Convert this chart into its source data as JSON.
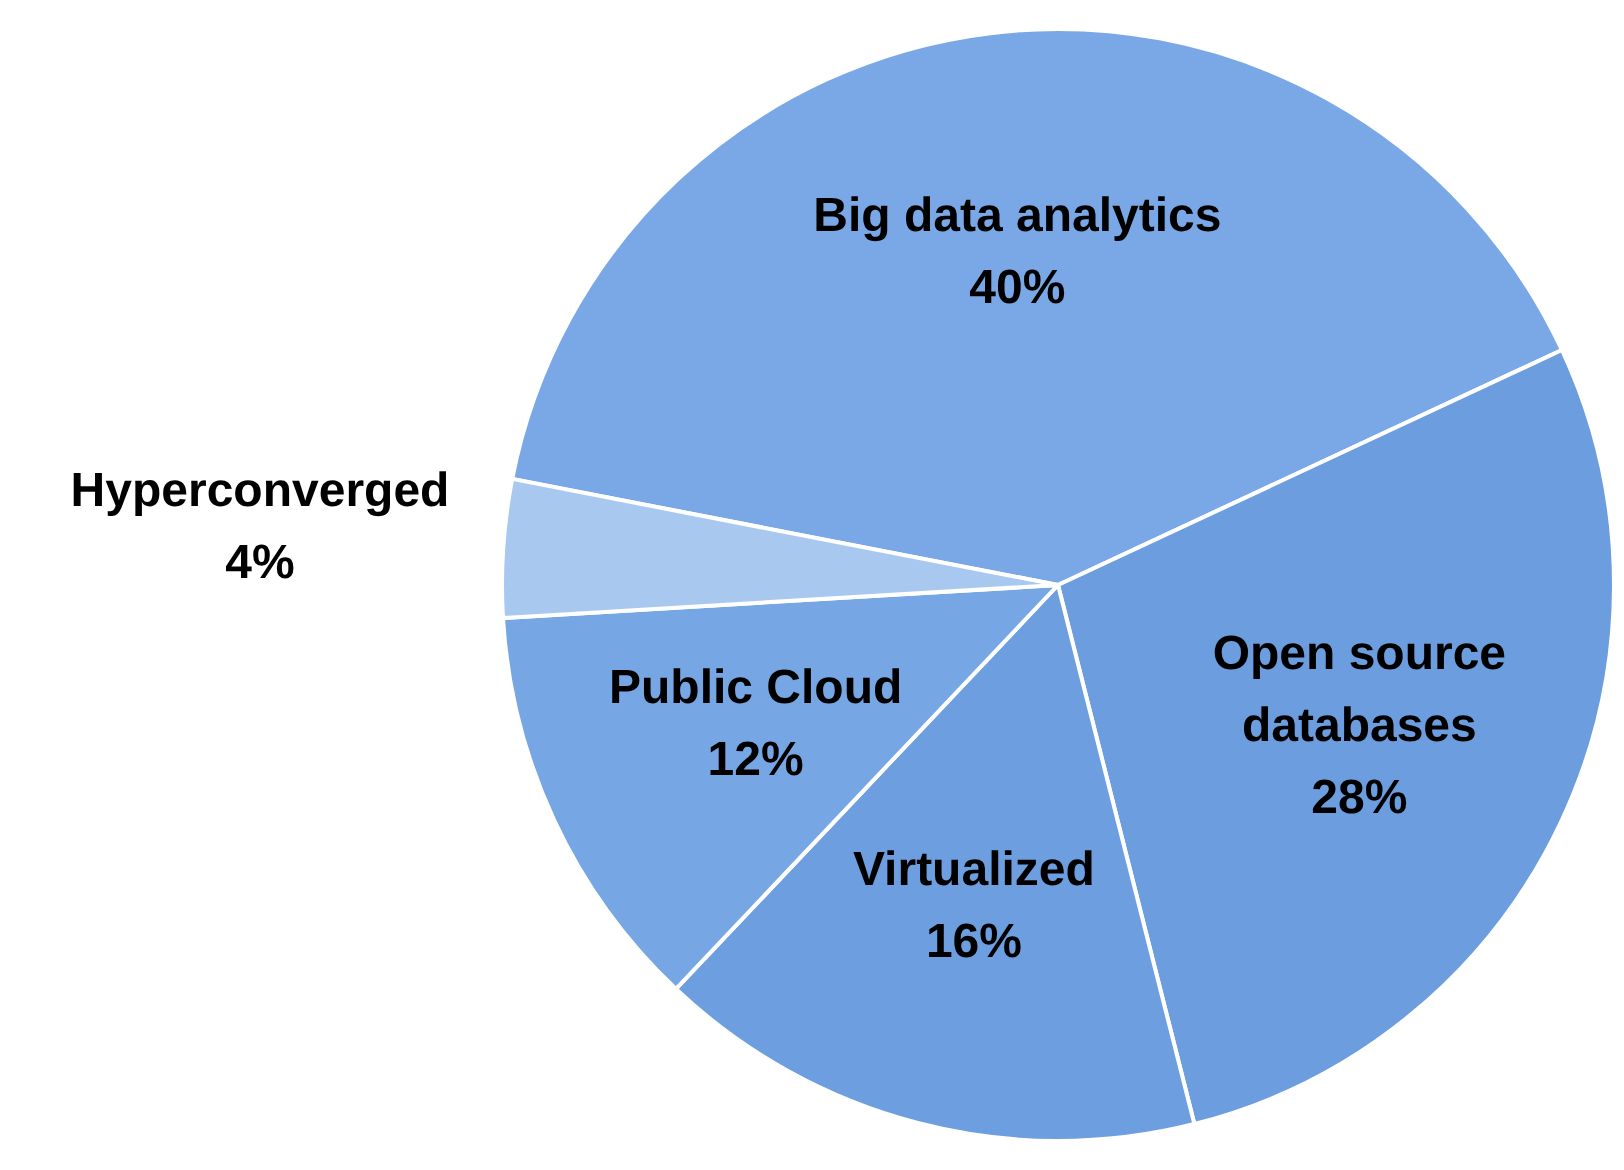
{
  "chart_data": {
    "type": "pie",
    "categories": [
      "Big data analytics",
      "Open source databases",
      "Virtualized",
      "Public Cloud",
      "Hyperconverged"
    ],
    "values": [
      40,
      28,
      16,
      12,
      4
    ],
    "colors": [
      "#7aa8e6",
      "#6b9ddf",
      "#6d9fe0",
      "#77a6e4",
      "#a9c8f0"
    ],
    "value_labels": [
      "40%",
      "28%",
      "16%",
      "12%",
      "4%"
    ],
    "legend": false
  }
}
